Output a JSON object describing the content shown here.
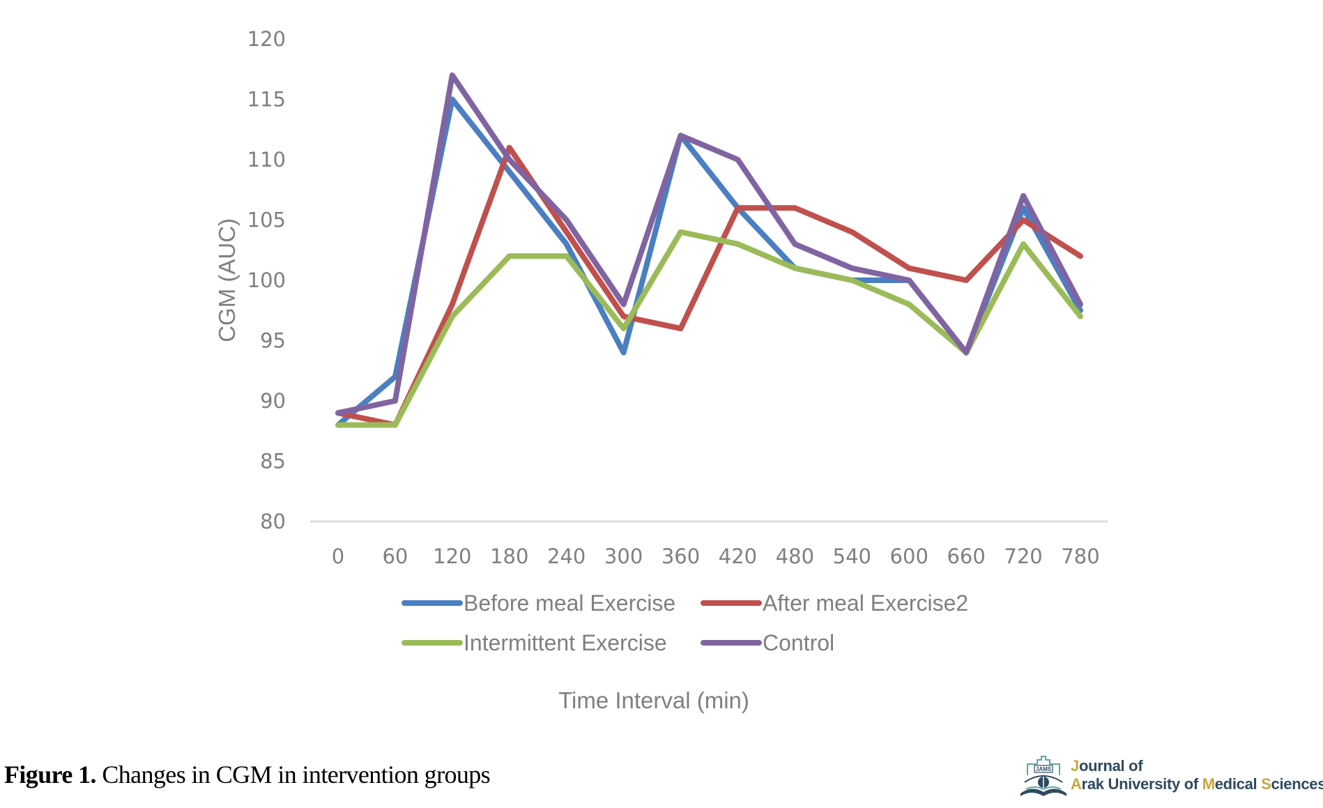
{
  "chart_data": {
    "type": "line",
    "title": "",
    "xlabel": "Time Interval (min)",
    "ylabel": "CGM (AUC)",
    "ylim": [
      80,
      120
    ],
    "yticks": [
      80,
      85,
      90,
      95,
      100,
      105,
      110,
      115,
      120
    ],
    "grid": false,
    "legend_position": "bottom",
    "categories": [
      "0",
      "60",
      "120",
      "180",
      "240",
      "300",
      "360",
      "420",
      "480",
      "540",
      "600",
      "660",
      "720",
      "780"
    ],
    "series": [
      {
        "name": "Before meal Exercise",
        "color": "#4a7fc1",
        "values": [
          88,
          92,
          115,
          109,
          103,
          94,
          112,
          106,
          101,
          100,
          100,
          94,
          106,
          97.5
        ]
      },
      {
        "name": "After meal Exercise2",
        "color": "#c0504d",
        "values": [
          89,
          88,
          98,
          111,
          104,
          97,
          96,
          106,
          106,
          104,
          101,
          100,
          105,
          102
        ]
      },
      {
        "name": "Intermittent Exercise",
        "color": "#9bbb59",
        "values": [
          88,
          88,
          97,
          102,
          102,
          96,
          104,
          103,
          101,
          100,
          98,
          94,
          103,
          97
        ]
      },
      {
        "name": "Control",
        "color": "#8064a2",
        "values": [
          89,
          90,
          117,
          110,
          105,
          98,
          112,
          110,
          103,
          101,
          100,
          94,
          107,
          98
        ]
      }
    ]
  },
  "caption": {
    "label": "Figure 1.",
    "text": " Changes in CGM in intervention groups"
  },
  "logo": {
    "badge": "JAMS",
    "line1_initial": "J",
    "line1_rest": "ournal of",
    "line2_a": "A",
    "line2_b": "rak University of ",
    "line2_m": "M",
    "line2_c": "edical ",
    "line2_s": "S",
    "line2_d": "ciences",
    "colors": {
      "navy": "#2e4a60",
      "gold": "#c9a63f",
      "teal": "#5aa6a8"
    }
  }
}
